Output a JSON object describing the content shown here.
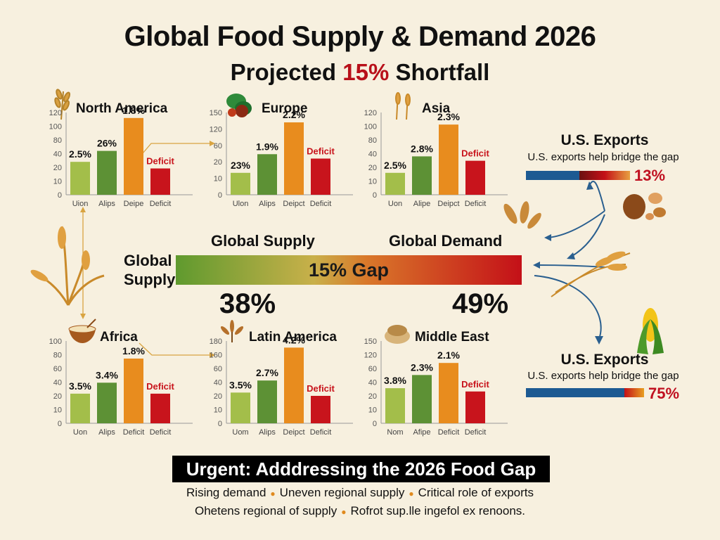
{
  "header": {
    "title": "Global Food Supply & Demand 2026",
    "subtitle_prefix": "Projected ",
    "subtitle_highlight": "15%",
    "subtitle_suffix": " Shortfall"
  },
  "colors": {
    "bar1": "#a3be4a",
    "bar2": "#5d9135",
    "bar3": "#e88c1e",
    "deficit": "#c8141c",
    "deficit_label": "#c8141c",
    "gap_start": "#5f9a2e",
    "gap_end": "#c41018",
    "blue": "#1d5a92",
    "arrow": "#2a5f8f"
  },
  "chart_data": [
    {
      "type": "bar",
      "title": "North America",
      "yticks": [
        "0",
        "10",
        "20",
        "40",
        "80",
        "100",
        "120"
      ],
      "categories": [
        "Uion",
        "Alips",
        "Deipe",
        "Deficit"
      ],
      "values": [
        3,
        4,
        7,
        2.4
      ],
      "value_labels": [
        "2.5%",
        "26%",
        "1.8%",
        "Deficit"
      ]
    },
    {
      "type": "bar",
      "title": "Europe",
      "yticks": [
        "0",
        "10",
        "20",
        "60",
        "120",
        "150"
      ],
      "categories": [
        "Ulon",
        "Alips",
        "Deipct",
        "Deficit"
      ],
      "values": [
        2,
        3.7,
        6.6,
        3.3
      ],
      "value_labels": [
        "23%",
        "1.9%",
        "2.2%",
        "Deficit"
      ]
    },
    {
      "type": "bar",
      "title": "Asia",
      "yticks": [
        "0",
        "10",
        "20",
        "40",
        "80",
        "100",
        "120"
      ],
      "categories": [
        "Uon",
        "Alipe",
        "Deipct",
        "Deficit"
      ],
      "values": [
        2,
        3.5,
        6.4,
        3.1
      ],
      "value_labels": [
        "2.5%",
        "2.8%",
        "2.3%",
        "Deficit"
      ]
    },
    {
      "type": "bar",
      "title": "Africa",
      "yticks": [
        "0",
        "10",
        "20",
        "40",
        "60",
        "80",
        "100"
      ],
      "categories": [
        "Uon",
        "Alips",
        "Deficit",
        "Deficit"
      ],
      "values": [
        2.7,
        3.7,
        5.9,
        2.7
      ],
      "value_labels": [
        "3.5%",
        "3.4%",
        "1.8%",
        "Deficit"
      ]
    },
    {
      "type": "bar",
      "title": "Latin America",
      "yticks": [
        "0",
        "10",
        "20",
        "40",
        "60",
        "160",
        "180"
      ],
      "categories": [
        "Uom",
        "Alips",
        "Deipct",
        "Deficit"
      ],
      "values": [
        2.8,
        3.9,
        6.9,
        2.5
      ],
      "value_labels": [
        "3.5%",
        "2.7%",
        "4.2%",
        "Deficit"
      ]
    },
    {
      "type": "bar",
      "title": "Middle East",
      "yticks": [
        "0",
        "10",
        "20",
        "40",
        "60",
        "120",
        "150"
      ],
      "categories": [
        "Nom",
        "Afipe",
        "Deficit",
        "Deficit"
      ],
      "values": [
        3.2,
        4.4,
        5.5,
        2.9
      ],
      "value_labels": [
        "3.8%",
        "2.3%",
        "2.1%",
        "Deficit"
      ]
    }
  ],
  "gap": {
    "left_label": "Global Supply",
    "right_label": "Global Demand",
    "side_label": "Global\nSupply",
    "center_label": "15% Gap",
    "supply_pct": "38%",
    "demand_pct": "49%"
  },
  "exports_top": {
    "title": "U.S. Exports",
    "subtitle": "U.S. exports help bridge the gap",
    "pct": "13%"
  },
  "exports_bottom": {
    "title": "U.S. Exports",
    "subtitle": "U.S. exports help bridge the gap",
    "pct": "75%"
  },
  "footer": {
    "banner": "Urgent: Adddressing the 2026 Food Gap",
    "line1": [
      "Rising demand",
      "Uneven regional supply",
      "Critical role of exports"
    ],
    "line2": [
      "Ohetens regional of supply",
      "Rofrot sup.lle ingefol ex renoons."
    ]
  }
}
